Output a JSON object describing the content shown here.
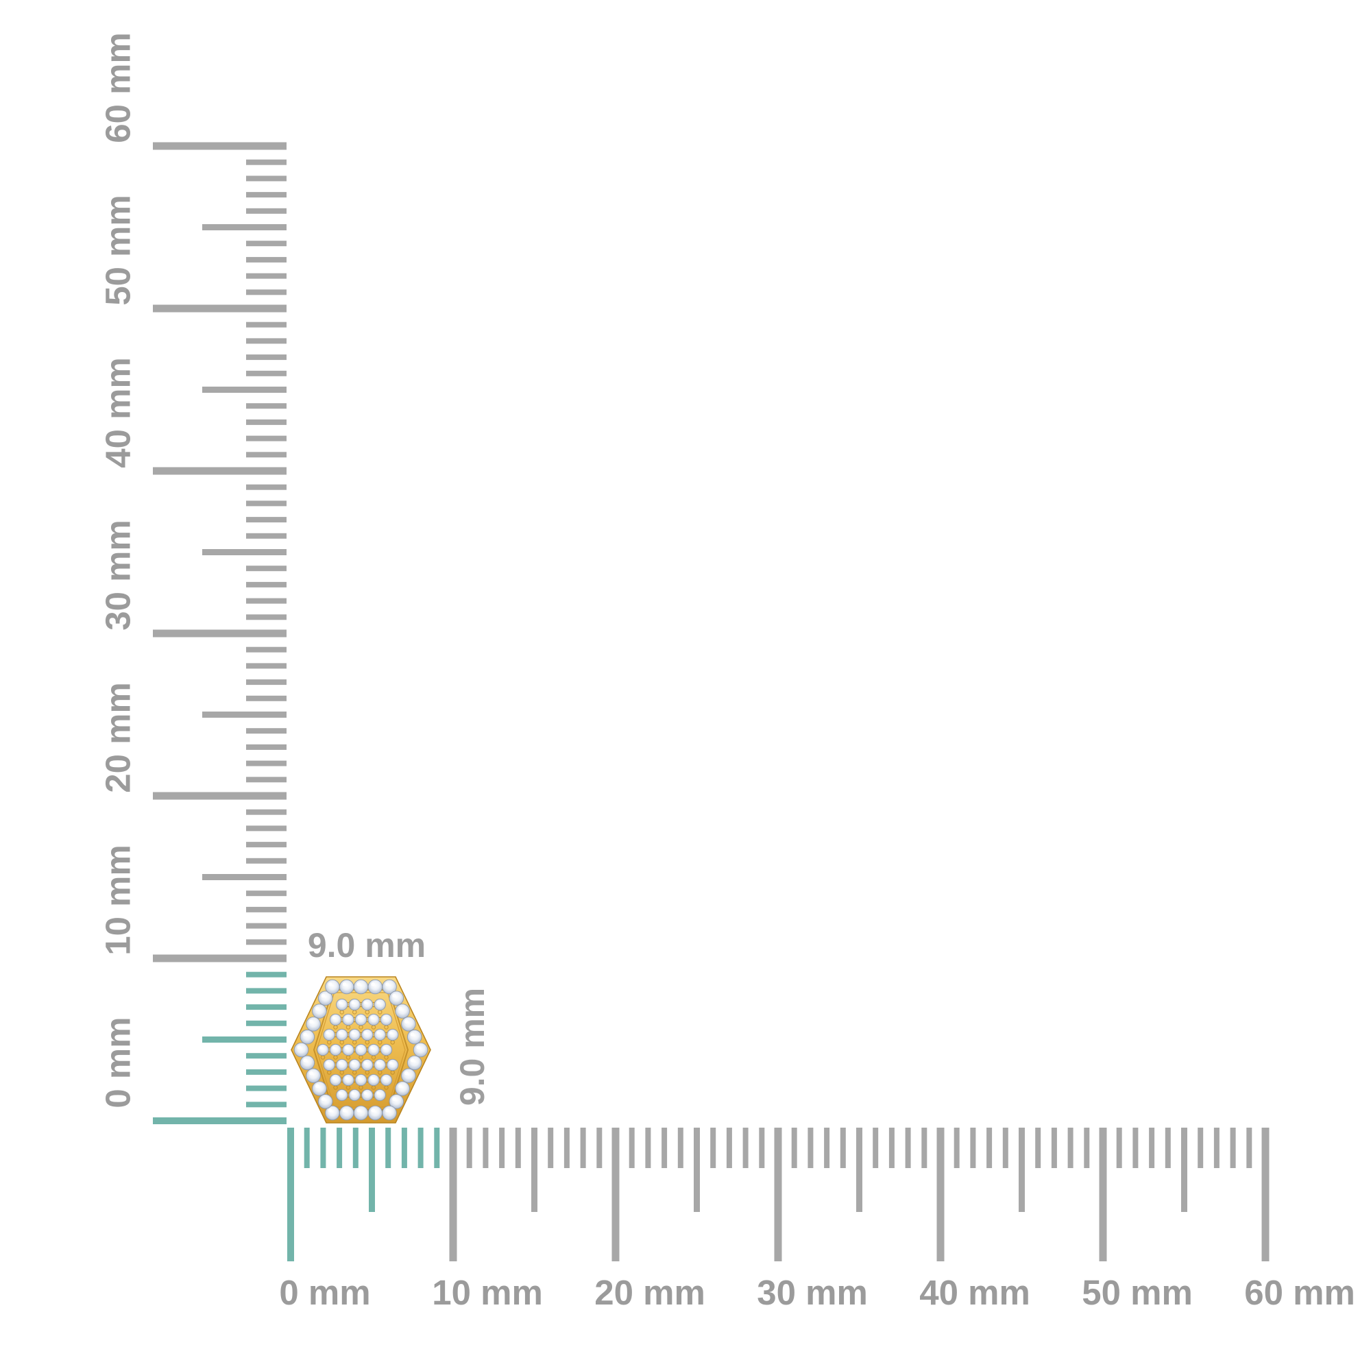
{
  "scene": {
    "background": "#ffffff",
    "subject": "Hexagonal pave diamond stud earring in yellow gold shown to scale on millimeter rulers"
  },
  "horizontal_ruler": {
    "unit": "mm",
    "min_mm": 0,
    "max_mm": 60,
    "minor_step_mm": 1,
    "medium_step_mm": 5,
    "major_step_mm": 10,
    "labels": [
      "0 mm",
      "10 mm",
      "20 mm",
      "30 mm",
      "40 mm",
      "50 mm",
      "60 mm"
    ],
    "highlight_to_mm": 9,
    "tick_color": "#a7a7a7",
    "highlight_color": "#72b4aa",
    "label_color": "#9b9b9b"
  },
  "vertical_ruler": {
    "unit": "mm",
    "min_mm": 0,
    "max_mm": 60,
    "minor_step_mm": 1,
    "medium_step_mm": 5,
    "major_step_mm": 10,
    "labels": [
      "0 mm",
      "10 mm",
      "20 mm",
      "30 mm",
      "40 mm",
      "50 mm",
      "60 mm"
    ],
    "highlight_to_mm": 9,
    "tick_color": "#a7a7a7",
    "highlight_color": "#72b4aa",
    "label_color": "#9b9b9b"
  },
  "measurement": {
    "width_label": "9.0 mm",
    "height_label": "9.0 mm",
    "label_color": "#9e9e9e"
  },
  "earring": {
    "shape": "hexagon",
    "metal": {
      "light": "#f8d985",
      "base": "#eebd50",
      "dark": "#d49a2f",
      "line": "#b9841f"
    },
    "diamond": {
      "center": "#ffffff",
      "mid": "#edf1f7",
      "edge": "#a9b6ca",
      "stroke": "#8a98ae"
    },
    "border_stone_count": 28,
    "pave_rows": [
      4,
      5,
      6,
      6,
      6,
      5,
      4
    ]
  }
}
